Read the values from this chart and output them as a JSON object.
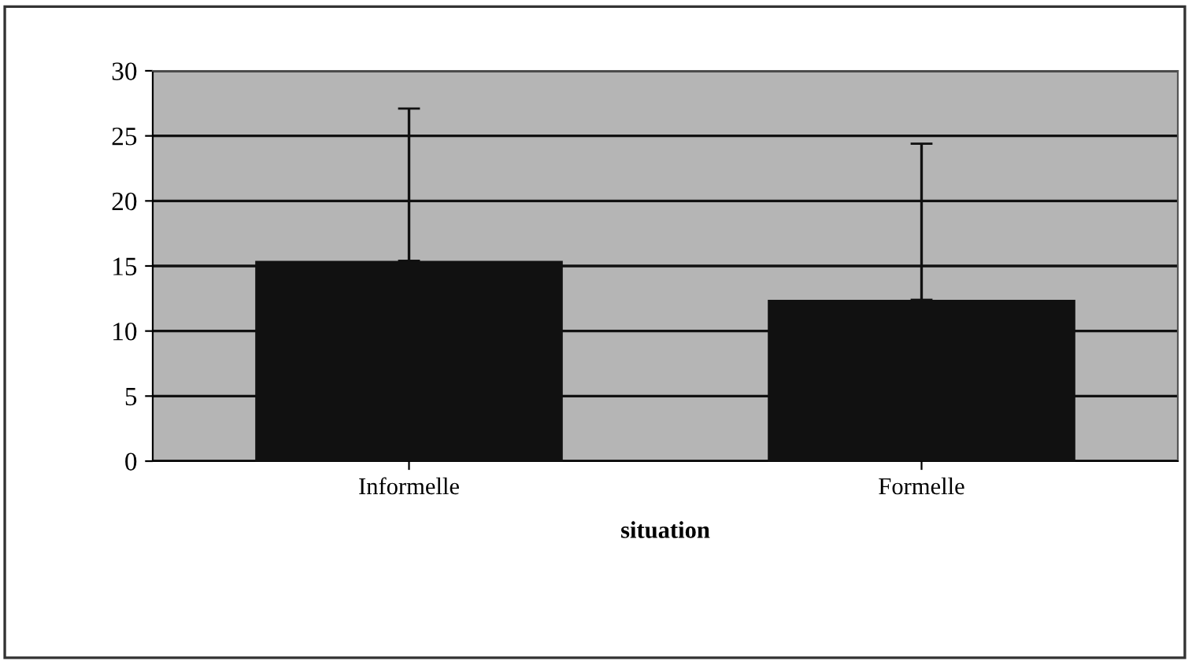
{
  "chart_data": {
    "type": "bar",
    "xlabel": "situation",
    "categories": [
      "Informelle",
      "Formelle"
    ],
    "values": [
      15.4,
      12.4
    ],
    "errors": [
      [
        15.4,
        27.1
      ],
      [
        12.4,
        24.4
      ]
    ],
    "color": "#111111",
    "ylim": [
      0,
      30
    ],
    "yticks": [
      0,
      5,
      10,
      15,
      20,
      25,
      30
    ],
    "grid": "y"
  }
}
